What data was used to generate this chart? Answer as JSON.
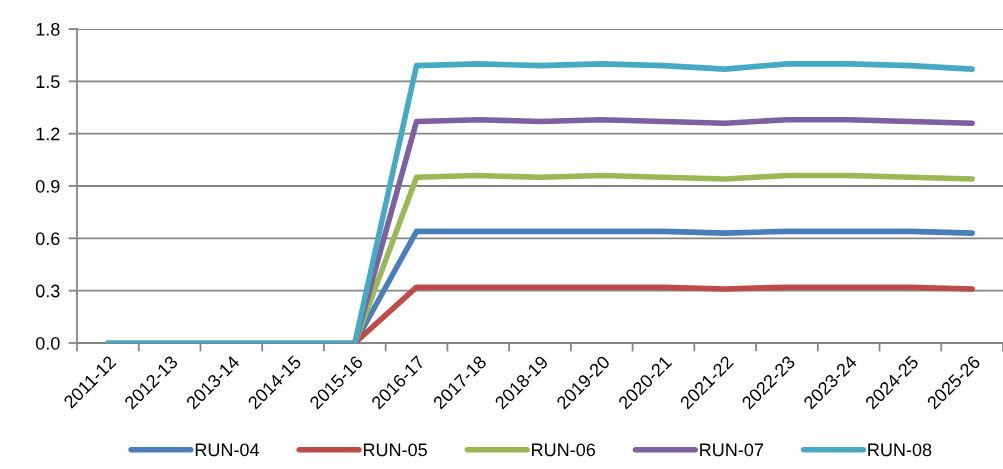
{
  "chart_data": {
    "type": "line",
    "categories": [
      "2011-12",
      "2012-13",
      "2013-14",
      "2014-15",
      "2015-16",
      "2016-17",
      "2017-18",
      "2018-19",
      "2019-20",
      "2020-21",
      "2021-22",
      "2022-23",
      "2023-24",
      "2024-25",
      "2025-26"
    ],
    "series": [
      {
        "name": "RUN-04",
        "color": "#4a7ebb",
        "values": [
          null,
          null,
          null,
          null,
          0,
          0.64,
          0.64,
          0.64,
          0.64,
          0.64,
          0.63,
          0.64,
          0.64,
          0.64,
          0.63
        ]
      },
      {
        "name": "RUN-05",
        "color": "#be4b48",
        "values": [
          null,
          null,
          null,
          null,
          0,
          0.32,
          0.32,
          0.32,
          0.32,
          0.32,
          0.31,
          0.32,
          0.32,
          0.32,
          0.31
        ]
      },
      {
        "name": "RUN-06",
        "color": "#98b954",
        "values": [
          null,
          null,
          null,
          null,
          0,
          0.95,
          0.96,
          0.95,
          0.96,
          0.95,
          0.94,
          0.96,
          0.96,
          0.95,
          0.94
        ]
      },
      {
        "name": "RUN-07",
        "color": "#7d60a0",
        "values": [
          null,
          null,
          null,
          null,
          0,
          1.27,
          1.28,
          1.27,
          1.28,
          1.27,
          1.26,
          1.28,
          1.28,
          1.27,
          1.26
        ]
      },
      {
        "name": "RUN-08",
        "color": "#46aac5",
        "values": [
          0,
          0,
          0,
          0,
          0,
          1.59,
          1.6,
          1.59,
          1.6,
          1.59,
          1.57,
          1.6,
          1.6,
          1.59,
          1.57
        ]
      }
    ],
    "ylim": [
      0,
      1.8
    ],
    "yticks": [
      {
        "value": 0,
        "label": "0.0"
      },
      {
        "value": 0.3,
        "label": "0.3"
      },
      {
        "value": 0.6,
        "label": "0.6"
      },
      {
        "value": 0.9,
        "label": "0.9"
      },
      {
        "value": 1.2,
        "label": "1.2"
      },
      {
        "value": 1.5,
        "label": "1.5"
      },
      {
        "value": 1.8,
        "label": "1.8"
      }
    ],
    "grid": "y",
    "legend": "bottom",
    "marker": "none",
    "line_style": "solid"
  }
}
